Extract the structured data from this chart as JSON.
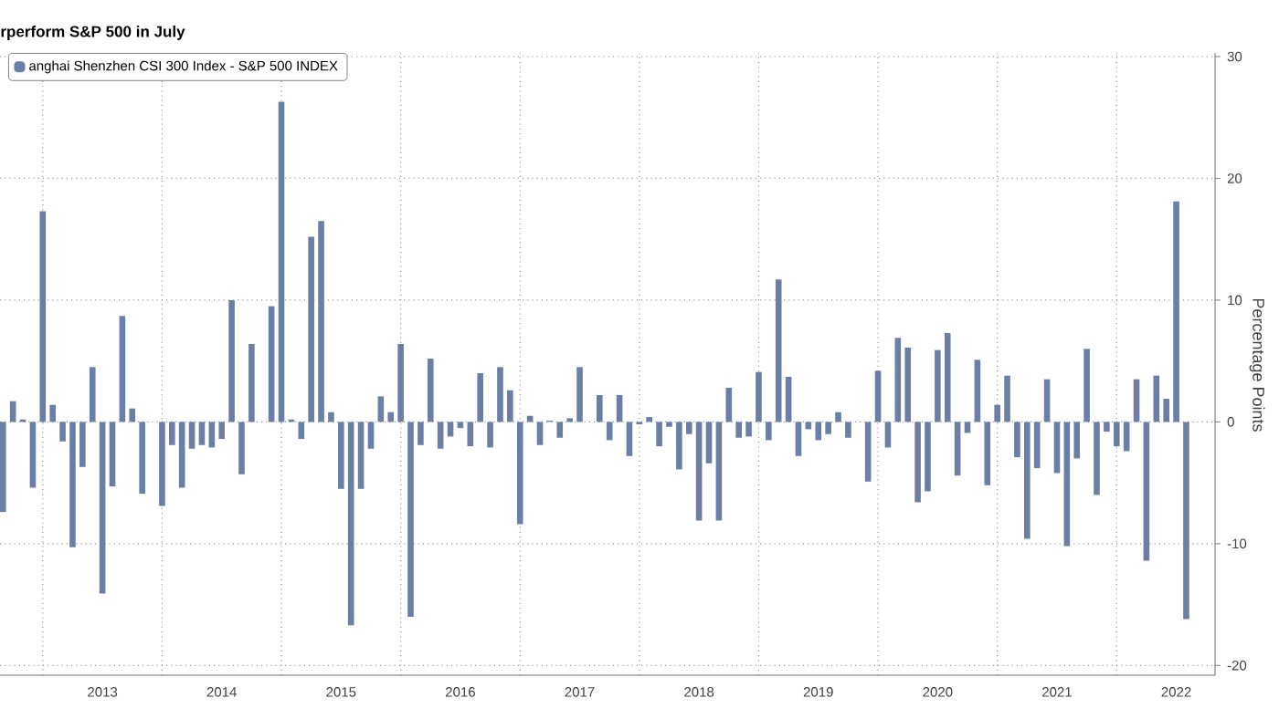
{
  "chart_data": {
    "type": "bar",
    "title": "rperform S&P 500 in July",
    "ylabel": "Percentage Points",
    "categories": [
      null,
      null,
      null,
      null,
      null,
      null,
      null,
      null,
      null,
      null,
      "2013",
      null,
      null,
      null,
      null,
      null,
      null,
      null,
      null,
      null,
      null,
      null,
      "2014",
      null,
      null,
      null,
      null,
      null,
      null,
      null,
      null,
      null,
      null,
      null,
      "2015",
      null,
      null,
      null,
      null,
      null,
      null,
      null,
      null,
      null,
      null,
      null,
      "2016",
      null,
      null,
      null,
      null,
      null,
      null,
      null,
      null,
      null,
      null,
      null,
      "2017",
      null,
      null,
      null,
      null,
      null,
      null,
      null,
      null,
      null,
      null,
      null,
      "2018",
      null,
      null,
      null,
      null,
      null,
      null,
      null,
      null,
      null,
      null,
      null,
      "2019",
      null,
      null,
      null,
      null,
      null,
      null,
      null,
      null,
      null,
      null,
      null,
      "2020",
      null,
      null,
      null,
      null,
      null,
      null,
      null,
      null,
      null,
      null,
      null,
      "2021",
      null,
      null,
      null,
      null,
      null,
      null,
      null,
      null,
      null,
      null,
      null,
      "2022",
      null
    ],
    "series": [
      {
        "name": "anghai Shenzhen CSI 300 Index - S&P 500 INDEX",
        "color": "#6a7ea6",
        "values": [
          -7.4,
          1.7,
          0.2,
          -5.4,
          17.3,
          1.4,
          -1.6,
          -10.3,
          -3.7,
          4.5,
          -14.1,
          -5.3,
          8.7,
          1.1,
          -5.9,
          0,
          -6.9,
          -1.9,
          -5.4,
          -2.2,
          -1.9,
          -2.1,
          -1.4,
          10.0,
          -4.3,
          6.4,
          0,
          9.5,
          26.3,
          0.2,
          -1.4,
          15.2,
          16.5,
          0.8,
          -5.5,
          -16.7,
          -5.5,
          -2.2,
          2.1,
          0.8,
          6.4,
          -16.0,
          -1.9,
          5.2,
          -2.2,
          -1.2,
          -0.5,
          -2.0,
          4.0,
          -2.1,
          4.5,
          2.6,
          -8.4,
          0.5,
          -1.9,
          0.1,
          -1.3,
          0.3,
          4.5,
          0,
          2.2,
          -1.5,
          2.2,
          -2.8,
          -0.2,
          0.4,
          -2.0,
          -0.4,
          -3.9,
          -1.0,
          -8.1,
          -3.4,
          -8.1,
          2.8,
          -1.3,
          -1.2,
          4.1,
          -1.5,
          11.7,
          3.7,
          -2.8,
          -0.6,
          -1.5,
          -1.0,
          0.8,
          -1.3,
          0,
          -4.9,
          4.2,
          -2.1,
          6.9,
          6.1,
          -6.6,
          -5.7,
          5.9,
          7.3,
          -4.4,
          -0.9,
          5.1,
          -5.2,
          1.4,
          3.8,
          -2.9,
          -9.6,
          -3.8,
          3.5,
          -4.2,
          -10.2,
          -3.0,
          6.0,
          -6.0,
          -0.8,
          -2.0,
          -2.4,
          3.5,
          -11.4,
          3.8,
          1.9,
          18.1,
          -16.2
        ]
      }
    ],
    "ylim": [
      -20.8,
      30.3
    ],
    "yticks": [
      -20,
      -10,
      0,
      10,
      20,
      30
    ],
    "grid": true,
    "legend": "top left"
  }
}
